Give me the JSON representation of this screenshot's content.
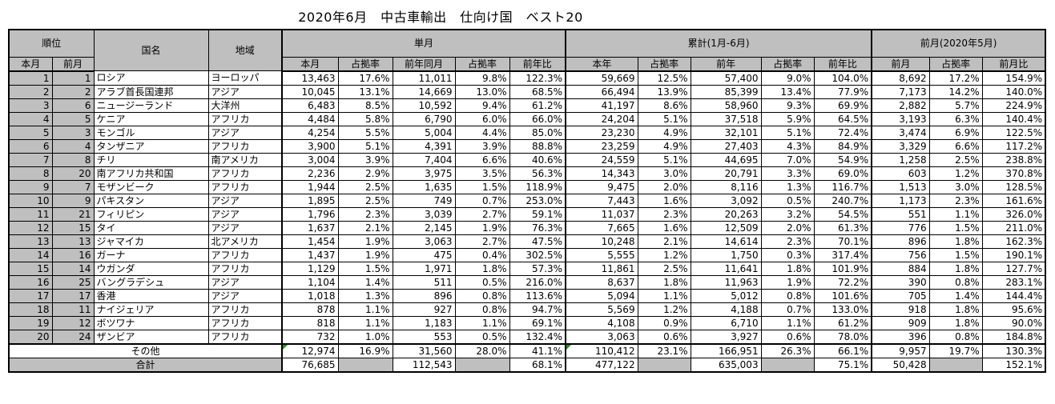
{
  "title": "2020年6月　中古車輸出　仕向け国　ベスト20",
  "headers": {
    "rank": "順位",
    "rank_this": "本月",
    "rank_prev": "前月",
    "country": "国名",
    "region": "地域",
    "monthly": "単月",
    "cumulative": "累計(1月-6月)",
    "prev_month": "前月(2020年5月)",
    "monthly_cols": [
      "本月",
      "占拠率",
      "前年同月",
      "占拠率",
      "前年比"
    ],
    "cumulative_cols": [
      "本年",
      "占拠率",
      "前年",
      "占拠率",
      "前年比"
    ],
    "prev_cols": [
      "前月",
      "占拠率",
      "前月比"
    ]
  },
  "rows": [
    [
      "1",
      "1",
      "ロシア",
      "ヨーロッパ",
      "13,463",
      "17.6%",
      "11,011",
      "9.8%",
      "122.3%",
      "59,669",
      "12.5%",
      "57,400",
      "9.0%",
      "104.0%",
      "8,692",
      "17.2%",
      "154.9%"
    ],
    [
      "2",
      "2",
      "アラブ首長国連邦",
      "アジア",
      "10,045",
      "13.1%",
      "14,669",
      "13.0%",
      "68.5%",
      "66,494",
      "13.9%",
      "85,399",
      "13.4%",
      "77.9%",
      "7,173",
      "14.2%",
      "140.0%"
    ],
    [
      "3",
      "6",
      "ニュージーランド",
      "大洋州",
      "6,483",
      "8.5%",
      "10,592",
      "9.4%",
      "61.2%",
      "41,197",
      "8.6%",
      "58,960",
      "9.3%",
      "69.9%",
      "2,882",
      "5.7%",
      "224.9%"
    ],
    [
      "4",
      "5",
      "ケニア",
      "アフリカ",
      "4,484",
      "5.8%",
      "6,790",
      "6.0%",
      "66.0%",
      "24,204",
      "5.1%",
      "37,518",
      "5.9%",
      "64.5%",
      "3,193",
      "6.3%",
      "140.4%"
    ],
    [
      "5",
      "3",
      "モンゴル",
      "アジア",
      "4,254",
      "5.5%",
      "5,004",
      "4.4%",
      "85.0%",
      "23,230",
      "4.9%",
      "32,101",
      "5.1%",
      "72.4%",
      "3,474",
      "6.9%",
      "122.5%"
    ],
    [
      "6",
      "4",
      "タンザニア",
      "アフリカ",
      "3,900",
      "5.1%",
      "4,391",
      "3.9%",
      "88.8%",
      "23,259",
      "4.9%",
      "27,403",
      "4.3%",
      "84.9%",
      "3,329",
      "6.6%",
      "117.2%"
    ],
    [
      "7",
      "8",
      "チリ",
      "南アメリカ",
      "3,004",
      "3.9%",
      "7,404",
      "6.6%",
      "40.6%",
      "24,559",
      "5.1%",
      "44,695",
      "7.0%",
      "54.9%",
      "1,258",
      "2.5%",
      "238.8%"
    ],
    [
      "8",
      "20",
      "南アフリカ共和国",
      "アフリカ",
      "2,236",
      "2.9%",
      "3,975",
      "3.5%",
      "56.3%",
      "14,343",
      "3.0%",
      "20,791",
      "3.3%",
      "69.0%",
      "603",
      "1.2%",
      "370.8%"
    ],
    [
      "9",
      "7",
      "モザンビーク",
      "アフリカ",
      "1,944",
      "2.5%",
      "1,635",
      "1.5%",
      "118.9%",
      "9,475",
      "2.0%",
      "8,116",
      "1.3%",
      "116.7%",
      "1,513",
      "3.0%",
      "128.5%"
    ],
    [
      "10",
      "9",
      "パキスタン",
      "アジア",
      "1,895",
      "2.5%",
      "749",
      "0.7%",
      "253.0%",
      "7,443",
      "1.6%",
      "3,092",
      "0.5%",
      "240.7%",
      "1,173",
      "2.3%",
      "161.6%"
    ],
    [
      "11",
      "21",
      "フィリピン",
      "アジア",
      "1,796",
      "2.3%",
      "3,039",
      "2.7%",
      "59.1%",
      "11,037",
      "2.3%",
      "20,263",
      "3.2%",
      "54.5%",
      "551",
      "1.1%",
      "326.0%"
    ],
    [
      "12",
      "15",
      "タイ",
      "アジア",
      "1,637",
      "2.1%",
      "2,145",
      "1.9%",
      "76.3%",
      "7,665",
      "1.6%",
      "12,509",
      "2.0%",
      "61.3%",
      "776",
      "1.5%",
      "211.0%"
    ],
    [
      "13",
      "13",
      "ジャマイカ",
      "北アメリカ",
      "1,454",
      "1.9%",
      "3,063",
      "2.7%",
      "47.5%",
      "10,248",
      "2.1%",
      "14,614",
      "2.3%",
      "70.1%",
      "896",
      "1.8%",
      "162.3%"
    ],
    [
      "14",
      "16",
      "ガーナ",
      "アフリカ",
      "1,437",
      "1.9%",
      "475",
      "0.4%",
      "302.5%",
      "5,555",
      "1.2%",
      "1,750",
      "0.3%",
      "317.4%",
      "756",
      "1.5%",
      "190.1%"
    ],
    [
      "15",
      "14",
      "ウガンダ",
      "アフリカ",
      "1,129",
      "1.5%",
      "1,971",
      "1.8%",
      "57.3%",
      "11,861",
      "2.5%",
      "11,641",
      "1.8%",
      "101.9%",
      "884",
      "1.8%",
      "127.7%"
    ],
    [
      "16",
      "25",
      "バングラデシュ",
      "アジア",
      "1,104",
      "1.4%",
      "511",
      "0.5%",
      "216.0%",
      "8,637",
      "1.8%",
      "11,963",
      "1.9%",
      "72.2%",
      "390",
      "0.8%",
      "283.1%"
    ],
    [
      "17",
      "17",
      "香港",
      "アジア",
      "1,018",
      "1.3%",
      "896",
      "0.8%",
      "113.6%",
      "5,094",
      "1.1%",
      "5,012",
      "0.8%",
      "101.6%",
      "705",
      "1.4%",
      "144.4%"
    ],
    [
      "18",
      "11",
      "ナイジェリア",
      "アフリカ",
      "878",
      "1.1%",
      "927",
      "0.8%",
      "94.7%",
      "5,569",
      "1.2%",
      "4,188",
      "0.7%",
      "133.0%",
      "918",
      "1.8%",
      "95.6%"
    ],
    [
      "19",
      "12",
      "ボツワナ",
      "アフリカ",
      "818",
      "1.1%",
      "1,183",
      "1.1%",
      "69.1%",
      "4,108",
      "0.9%",
      "6,710",
      "1.1%",
      "61.2%",
      "909",
      "1.8%",
      "90.0%"
    ],
    [
      "20",
      "24",
      "ザンビア",
      "アフリカ",
      "732",
      "1.0%",
      "553",
      "0.5%",
      "132.4%",
      "3,063",
      "0.6%",
      "3,927",
      "0.6%",
      "78.0%",
      "396",
      "0.8%",
      "184.8%"
    ]
  ],
  "other": {
    "label": "その他",
    "values": [
      "12,974",
      "16.9%",
      "31,560",
      "28.0%",
      "41.1%",
      "110,412",
      "23.1%",
      "166,951",
      "26.3%",
      "66.1%",
      "9,957",
      "19.7%",
      "130.3%"
    ]
  },
  "total": {
    "label": "合計",
    "values": [
      "76,685",
      "",
      "112,543",
      "",
      "68.1%",
      "477,122",
      "",
      "635,003",
      "",
      "75.1%",
      "50,428",
      "",
      "152.1%"
    ]
  }
}
